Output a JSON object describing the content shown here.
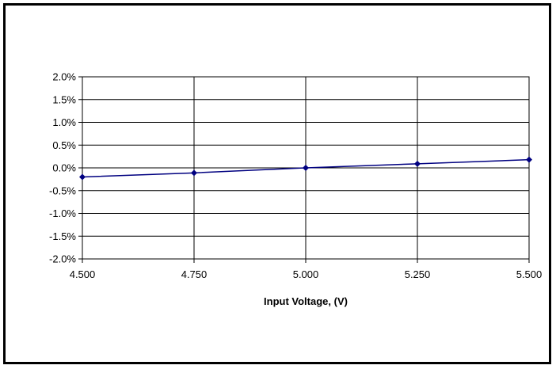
{
  "chart_data": {
    "type": "line",
    "title": "",
    "xlabel": "Input Voltage, (V)",
    "ylabel": "",
    "x": [
      4.5,
      4.75,
      5.0,
      5.25,
      5.5
    ],
    "series": [
      {
        "values": [
          -0.002,
          -0.0011,
          0.0,
          0.0009,
          0.0018
        ]
      }
    ],
    "xlim": [
      4.5,
      5.5
    ],
    "ylim": [
      -0.02,
      0.02
    ],
    "x_ticks": [
      4.5,
      4.75,
      5.0,
      5.25,
      5.5
    ],
    "x_tick_labels": [
      "4.500",
      "4.750",
      "5.000",
      "5.250",
      "5.500"
    ],
    "y_ticks": [
      0.02,
      0.015,
      0.01,
      0.005,
      0.0,
      -0.005,
      -0.01,
      -0.015,
      -0.02
    ],
    "y_tick_labels": [
      "2.0%",
      "1.5%",
      "1.0%",
      "0.5%",
      "0.0%",
      "-0.5%",
      "-1.0%",
      "-1.5%",
      "-2.0%"
    ],
    "grid": true,
    "legend": "none",
    "colors": {
      "series_line": "#000080",
      "marker": "#000080",
      "grid": "#000000",
      "frame": "#000000"
    },
    "marker": "diamond-icon"
  }
}
